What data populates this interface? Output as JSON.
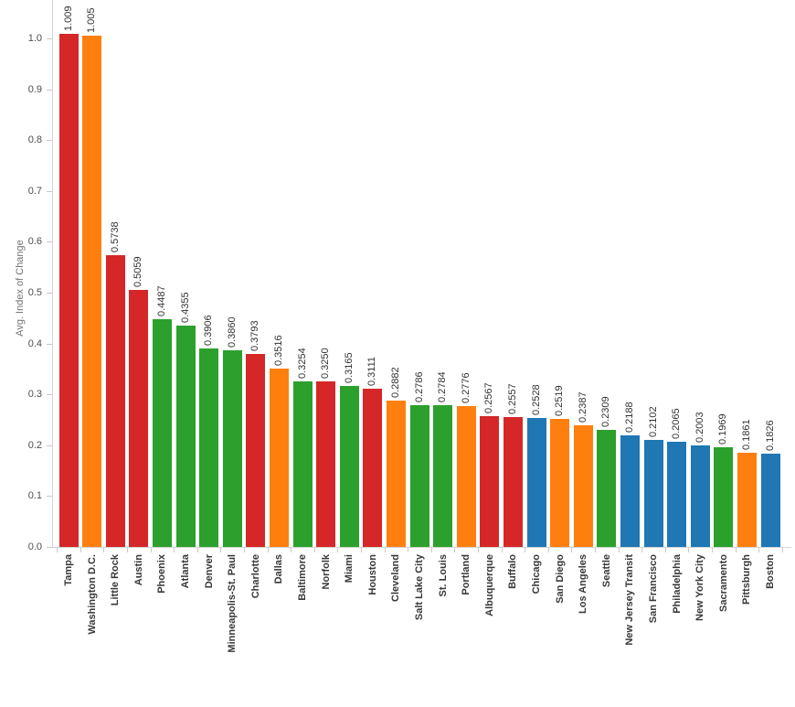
{
  "chart_data": {
    "type": "bar",
    "ylabel": "Avg. Index of Change",
    "ylim": [
      0.0,
      1.0
    ],
    "ytick_labels": [
      "0.0",
      "0.1",
      "0.2",
      "0.3",
      "0.4",
      "0.5",
      "0.6",
      "0.7",
      "0.8",
      "0.9",
      "1.0"
    ],
    "grid": false,
    "legend_position": "none",
    "categories": [
      "Tampa",
      "Washington D.C.",
      "Little Rock",
      "Austin",
      "Phoenix",
      "Atlanta",
      "Denver",
      "Minneapolis-St. Paul",
      "Charlotte",
      "Dallas",
      "Baltimore",
      "Norfolk",
      "Miami",
      "Houston",
      "Cleveland",
      "Salt Lake City",
      "St. Louis",
      "Portland",
      "Albuquerque",
      "Buffalo",
      "Chicago",
      "San Diego",
      "Los Angeles",
      "Seattle",
      "New Jersey Transit",
      "San Francisco",
      "Philadelphia",
      "New York City",
      "Sacramento",
      "Pittsburgh",
      "Boston"
    ],
    "values": [
      1.009,
      1.005,
      0.5738,
      0.5059,
      0.4487,
      0.4355,
      0.3906,
      0.386,
      0.3793,
      0.3516,
      0.3254,
      0.325,
      0.3165,
      0.3111,
      0.2882,
      0.2786,
      0.2784,
      0.2776,
      0.2567,
      0.2557,
      0.2528,
      0.2519,
      0.2387,
      0.2309,
      0.2188,
      0.2102,
      0.2065,
      0.2003,
      0.1969,
      0.1861,
      0.1826
    ],
    "value_labels": [
      "1.009",
      "1.005",
      "0.5738",
      "0.5059",
      "0.4487",
      "0.4355",
      "0.3906",
      "0.3860",
      "0.3793",
      "0.3516",
      "0.3254",
      "0.3250",
      "0.3165",
      "0.3111",
      "0.2882",
      "0.2786",
      "0.2784",
      "0.2776",
      "0.2567",
      "0.2557",
      "0.2528",
      "0.2519",
      "0.2387",
      "0.2309",
      "0.2188",
      "0.2102",
      "0.2065",
      "0.2003",
      "0.1969",
      "0.1861",
      "0.1826"
    ],
    "bar_colors": [
      "#d62728",
      "#ff7f0e",
      "#d62728",
      "#d62728",
      "#2ca02c",
      "#2ca02c",
      "#2ca02c",
      "#2ca02c",
      "#d62728",
      "#ff7f0e",
      "#2ca02c",
      "#d62728",
      "#2ca02c",
      "#d62728",
      "#ff7f0e",
      "#2ca02c",
      "#2ca02c",
      "#ff7f0e",
      "#d62728",
      "#d62728",
      "#1f77b4",
      "#ff7f0e",
      "#ff7f0e",
      "#2ca02c",
      "#1f77b4",
      "#1f77b4",
      "#1f77b4",
      "#1f77b4",
      "#2ca02c",
      "#ff7f0e",
      "#1f77b4"
    ],
    "palette": {
      "red": "#d62728",
      "orange": "#ff7f0e",
      "green": "#2ca02c",
      "blue": "#1f77b4"
    }
  }
}
